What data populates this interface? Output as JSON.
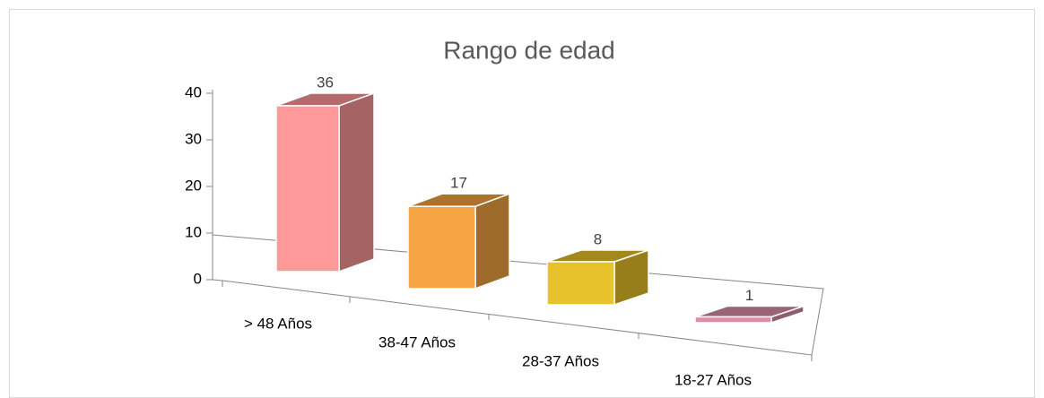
{
  "chart_data": {
    "type": "bar3d",
    "title": "Rango de edad",
    "categories": [
      "> 48 Años",
      "38-47 Años",
      "28-37 Años",
      "18-27 Años"
    ],
    "values": [
      36,
      17,
      8,
      1
    ],
    "colors": [
      "#ff9999",
      "#f4a442",
      "#e8c22a",
      "#d98fa8"
    ],
    "ylim": [
      0,
      40
    ],
    "yticks": [
      0,
      10,
      20,
      30,
      40
    ]
  }
}
